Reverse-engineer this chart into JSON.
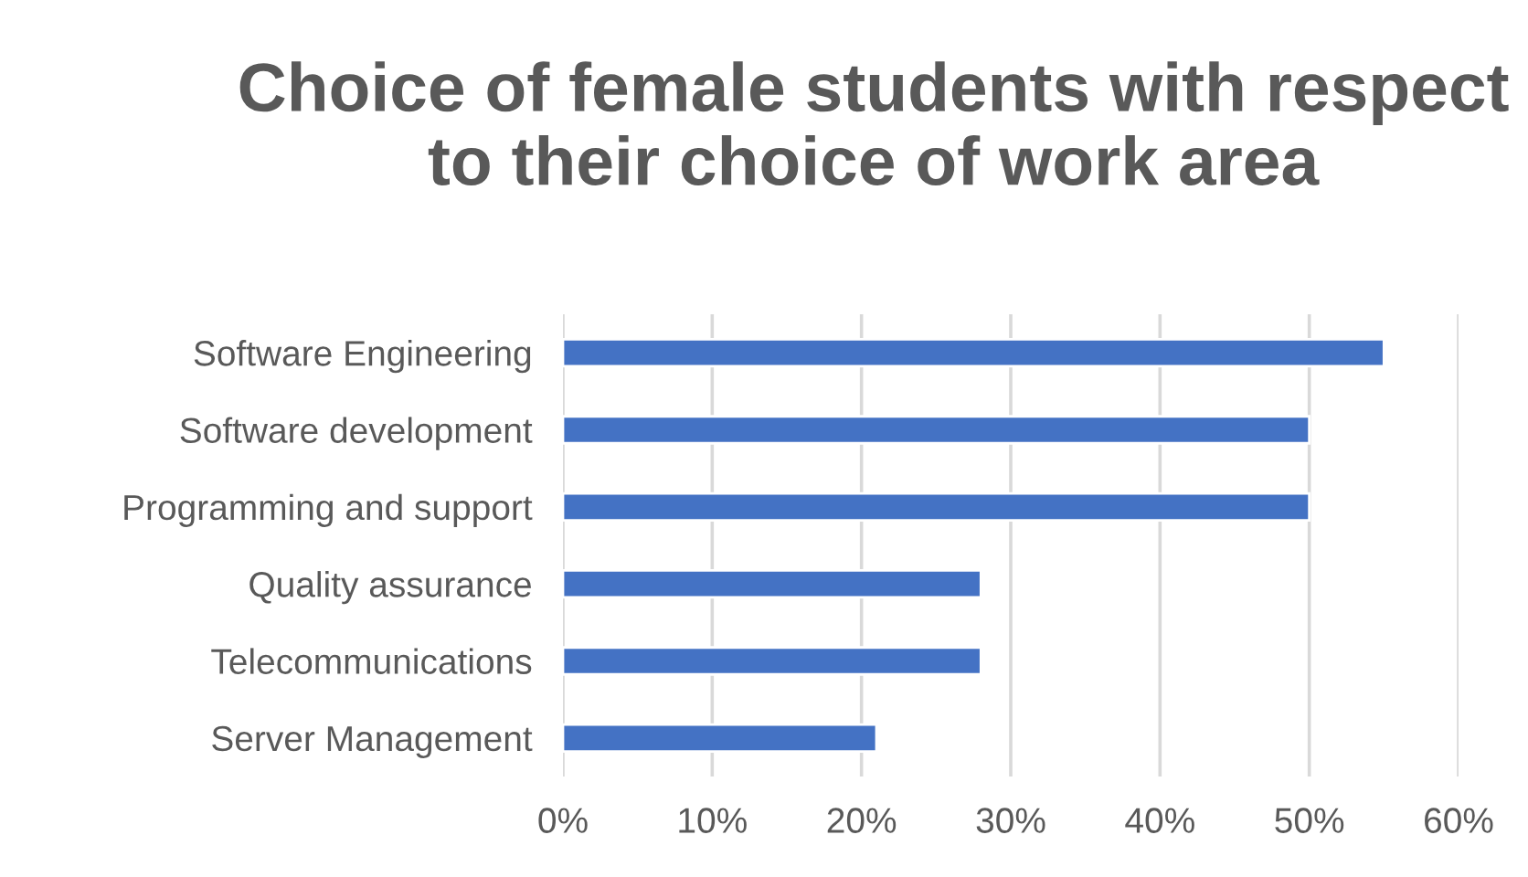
{
  "chart_data": {
    "type": "bar",
    "orientation": "horizontal",
    "title": "Choice of female students with respect to their choice of work area",
    "categories": [
      "Software Engineering",
      "Software development",
      "Programming and support",
      "Quality assurance",
      "Telecommunications",
      "Server Management"
    ],
    "values": [
      55,
      50,
      50,
      28,
      28,
      21
    ],
    "color": "#4472c4",
    "xlim": [
      0,
      60
    ],
    "xticks": [
      {
        "value": 0,
        "label": "0%"
      },
      {
        "value": 10,
        "label": "10%"
      },
      {
        "value": 20,
        "label": "20%"
      },
      {
        "value": 30,
        "label": "30%"
      },
      {
        "value": 40,
        "label": "40%"
      },
      {
        "value": 50,
        "label": "50%"
      },
      {
        "value": 60,
        "label": "60%"
      }
    ],
    "grid": "x",
    "legend": false
  }
}
